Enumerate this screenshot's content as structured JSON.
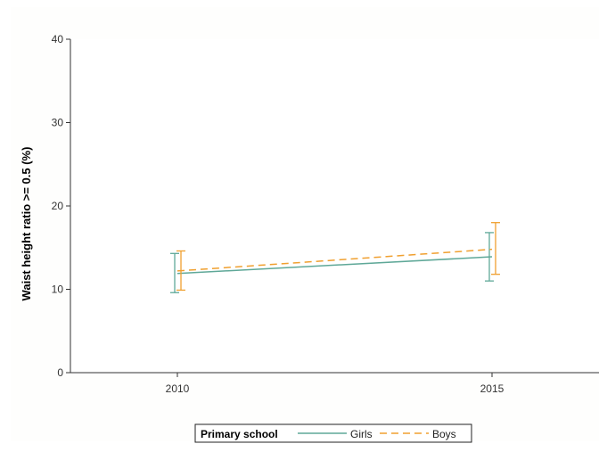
{
  "chart_data": {
    "type": "line",
    "title": "",
    "xlabel": "",
    "ylabel": "Waist height ratio >= 0.5 (%)",
    "x": [
      2010,
      2015
    ],
    "x_ticks": [
      "2010",
      "2015"
    ],
    "xlim": [
      2008.3,
      2016.7
    ],
    "ylim": [
      0,
      40
    ],
    "y_ticks": [
      "0",
      "10",
      "20",
      "30",
      "40"
    ],
    "grid": false,
    "legend": {
      "position": "bottom",
      "title": "Primary school",
      "entries": [
        "Girls",
        "Boys"
      ]
    },
    "series": [
      {
        "name": "Girls",
        "color": "#5fa898",
        "dash": "solid",
        "values": [
          11.9,
          13.9
        ],
        "ci_low": [
          9.6,
          11.0
        ],
        "ci_high": [
          14.3,
          16.8
        ]
      },
      {
        "name": "Boys",
        "color": "#f0a030",
        "dash": "dashed",
        "values": [
          12.2,
          14.8
        ],
        "ci_low": [
          9.9,
          11.8
        ],
        "ci_high": [
          14.6,
          18.0
        ]
      }
    ]
  }
}
